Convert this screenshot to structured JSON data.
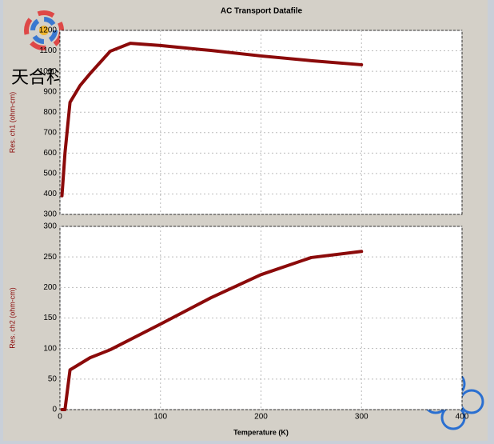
{
  "watermark": "天合科研",
  "chart_data": [
    {
      "type": "line",
      "title": "AC Transport Datafile",
      "y_label": "Res. ch1 (ohm-cm)",
      "x": [
        2,
        5,
        10,
        20,
        30,
        50,
        70,
        100,
        150,
        200,
        250,
        300
      ],
      "series": [
        {
          "name": "ch1",
          "color": "#8b0a0a",
          "values": [
            391,
            600,
            848,
            930,
            989,
            1098,
            1137,
            1126,
            1102,
            1075,
            1052,
            1032
          ]
        }
      ],
      "xlim": [
        0,
        400
      ],
      "xticks": [
        0,
        100,
        200,
        300,
        400
      ],
      "ylim": [
        300,
        1200
      ],
      "yticks": [
        300,
        400,
        500,
        600,
        700,
        800,
        900,
        1000,
        1100,
        1200
      ],
      "grid": true
    },
    {
      "type": "line",
      "y_label": "Res. ch2 (ohm-cm)",
      "x_label": "Temperature (K)",
      "x": [
        2,
        5,
        10,
        20,
        30,
        50,
        100,
        150,
        200,
        250,
        300
      ],
      "series": [
        {
          "name": "ch2",
          "color": "#8b0a0a",
          "values": [
            0,
            0,
            65,
            75,
            85,
            98,
            140,
            183,
            221,
            249,
            259
          ]
        }
      ],
      "xlim": [
        0,
        400
      ],
      "xticks": [
        0,
        100,
        200,
        300,
        400
      ],
      "ylim": [
        0,
        300
      ],
      "yticks": [
        0,
        50,
        100,
        150,
        200,
        250,
        300
      ],
      "grid": true
    }
  ]
}
